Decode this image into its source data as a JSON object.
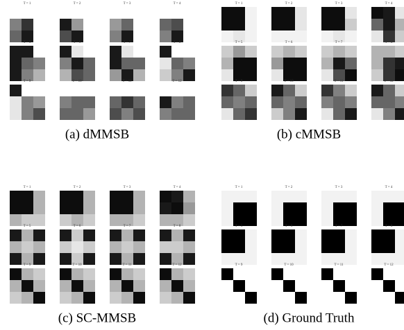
{
  "panels": [
    {
      "caption": "(a) dMMSB",
      "labels": [
        "T = 1",
        "T = 2",
        "T = 3",
        "T = 4",
        "T = 5",
        "T = 6",
        "T = 7",
        "T = 8",
        "T = 9",
        "T = 10",
        "T = 11",
        "T = 12"
      ],
      "matrices": [
        [
          0,
          0,
          0,
          0.5,
          0.8,
          0,
          0.6,
          0.9,
          0
        ],
        [
          0,
          0,
          0,
          0.9,
          0.4,
          0,
          0.7,
          0.9,
          0
        ],
        [
          0,
          0,
          0,
          0.4,
          0.6,
          0,
          0.5,
          0.9,
          0
        ],
        [
          0,
          0,
          0,
          0.6,
          0.7,
          0,
          0.5,
          0.9,
          0
        ],
        [
          0.9,
          0.9,
          0,
          0.9,
          0.6,
          0.5,
          0.9,
          0.5,
          0.3
        ],
        [
          0.9,
          0.1,
          0,
          0.5,
          0.9,
          0.6,
          0.3,
          0.7,
          0.6
        ],
        [
          0.9,
          0.1,
          0,
          0.9,
          0.6,
          0.6,
          0.4,
          0.9,
          0.3
        ],
        [
          0.9,
          0,
          0,
          0.1,
          0.6,
          0.5,
          0.2,
          0.5,
          0.9
        ],
        [
          0.9,
          0,
          0,
          0.1,
          0.5,
          0.4,
          0.1,
          0.5,
          0.7
        ],
        [
          0,
          0,
          0,
          0.5,
          0.6,
          0.6,
          0.6,
          0.6,
          0.4
        ],
        [
          0,
          0,
          0,
          0.6,
          0.8,
          0.6,
          0.7,
          0.5,
          0.7
        ],
        [
          0,
          0,
          0,
          0.9,
          0.5,
          0.6,
          0.5,
          0.6,
          0.6
        ]
      ]
    },
    {
      "caption": "(b) cMMSB",
      "labels": [
        "T = 1",
        "T = 2",
        "T = 3",
        "T = 4",
        "T = 5",
        "T = 6",
        "T = 7",
        "T = 8",
        "T = 9",
        "T = 10",
        "T = 11",
        "T = 12"
      ],
      "matrices": [
        [
          0.95,
          0.95,
          0.05,
          0.95,
          0.95,
          0.05,
          0.05,
          0.1,
          0.05
        ],
        [
          0.95,
          0.95,
          0.1,
          0.95,
          0.95,
          0.1,
          0.05,
          0.05,
          0.05
        ],
        [
          0.95,
          0.95,
          0.1,
          0.95,
          0.95,
          0.2,
          0.05,
          0.1,
          0.05
        ],
        [
          0.95,
          0.9,
          0.1,
          0.6,
          0.9,
          0.3,
          0.1,
          0.8,
          0.2
        ],
        [
          0.2,
          0.4,
          0.2,
          0.3,
          0.95,
          0.95,
          0.1,
          0.95,
          0.95
        ],
        [
          0.2,
          0.3,
          0.2,
          0.4,
          0.95,
          0.95,
          0.1,
          0.95,
          0.95
        ],
        [
          0.2,
          0.3,
          0.2,
          0.3,
          0.9,
          0.6,
          0.1,
          0.7,
          0.95
        ],
        [
          0.3,
          0.3,
          0.2,
          0.3,
          0.8,
          0.9,
          0.2,
          0.8,
          0.95
        ],
        [
          0.8,
          0.6,
          0.2,
          0.6,
          0.5,
          0.6,
          0.1,
          0.6,
          0.8
        ],
        [
          0.9,
          0.6,
          0.2,
          0.6,
          0.5,
          0.6,
          0.2,
          0.5,
          0.9
        ],
        [
          0.8,
          0.5,
          0.2,
          0.5,
          0.6,
          0.5,
          0.1,
          0.6,
          0.9
        ],
        [
          0.9,
          0.6,
          0.2,
          0.6,
          0.6,
          0.5,
          0.1,
          0.5,
          0.9
        ]
      ]
    },
    {
      "caption": "(c) SC-MMSB",
      "labels": [
        "T = 1",
        "T = 2",
        "T = 3",
        "T = 4",
        "T = 5",
        "T = 6",
        "T = 7",
        "T = 8",
        "T = 9",
        "T = 10",
        "T = 11",
        "T = 12"
      ],
      "matrices": [
        [
          0.95,
          0.95,
          0.3,
          0.95,
          0.95,
          0.3,
          0.3,
          0.2,
          0.2
        ],
        [
          0.95,
          0.95,
          0.3,
          0.95,
          0.95,
          0.3,
          0.2,
          0.3,
          0.2
        ],
        [
          0.95,
          0.95,
          0.3,
          0.95,
          0.95,
          0.3,
          0.3,
          0.3,
          0.2
        ],
        [
          0.95,
          0.9,
          0.3,
          0.9,
          0.95,
          0.4,
          0.3,
          0.3,
          0.2
        ],
        [
          0.9,
          0.3,
          0.9,
          0.3,
          0.2,
          0.3,
          0.9,
          0.3,
          0.9
        ],
        [
          0.9,
          0.2,
          0.9,
          0.2,
          0.1,
          0.2,
          0.9,
          0.2,
          0.9
        ],
        [
          0.9,
          0.3,
          0.9,
          0.3,
          0.2,
          0.3,
          0.9,
          0.3,
          0.9
        ],
        [
          0.9,
          0.3,
          0.9,
          0.2,
          0.2,
          0.3,
          0.9,
          0.3,
          0.9
        ],
        [
          0.95,
          0.3,
          0.2,
          0.3,
          0.95,
          0.3,
          0.2,
          0.3,
          0.95
        ],
        [
          0.95,
          0.3,
          0.2,
          0.3,
          0.95,
          0.3,
          0.2,
          0.3,
          0.95
        ],
        [
          0.95,
          0.3,
          0.2,
          0.3,
          0.95,
          0.3,
          0.2,
          0.3,
          0.95
        ],
        [
          0.95,
          0.3,
          0.2,
          0.3,
          0.95,
          0.3,
          0.2,
          0.3,
          0.95
        ]
      ]
    },
    {
      "caption": "(d) Ground Truth",
      "labels": [
        "T = 1",
        "T = 2",
        "T = 3",
        "T = 4",
        "T = 5",
        "T = 6",
        "T = 7",
        "T = 8",
        "T = 9",
        "T = 10",
        "T = 11",
        "T = 12"
      ],
      "matrices": [
        [
          0.05,
          0.05,
          0.05,
          0.05,
          1,
          1,
          0.05,
          1,
          1
        ],
        [
          0.05,
          0.05,
          0.05,
          0.05,
          1,
          1,
          0.05,
          1,
          1
        ],
        [
          0.05,
          0.05,
          0.05,
          0.05,
          1,
          1,
          0.05,
          1,
          1
        ],
        [
          0.05,
          0.05,
          0.05,
          0.05,
          1,
          1,
          0.05,
          1,
          1
        ],
        [
          1,
          1,
          0.05,
          1,
          1,
          0.05,
          0.05,
          0.05,
          0.05
        ],
        [
          1,
          1,
          0.05,
          1,
          1,
          0.05,
          0.05,
          0.05,
          0.05
        ],
        [
          1,
          1,
          0.05,
          1,
          1,
          0.05,
          0.05,
          0.05,
          0.05
        ],
        [
          1,
          1,
          0.05,
          1,
          1,
          0.05,
          0.05,
          0.05,
          0.05
        ],
        [
          1,
          0,
          0,
          0,
          1,
          0,
          0,
          0,
          1
        ],
        [
          1,
          0,
          0,
          0,
          1,
          0,
          0,
          0,
          1
        ],
        [
          1,
          0,
          0,
          0,
          1,
          0,
          0,
          0,
          1
        ],
        [
          1,
          0,
          0,
          0,
          1,
          0,
          0,
          0,
          1
        ]
      ]
    }
  ]
}
